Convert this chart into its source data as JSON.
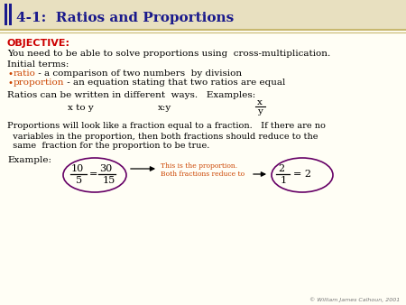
{
  "title": "4-1:  Ratios and Proportions",
  "title_color": "#1a1a8c",
  "title_fontsize": 11,
  "bg_color": "#fffef5",
  "header_bg": "#e8e0c0",
  "objective_label": "OBJECTIVE:",
  "objective_color": "#cc0000",
  "objective_fontsize": 8,
  "body_color": "#000000",
  "body_fontsize": 7.5,
  "small_fontsize": 6.5,
  "highlight_color": "#cc4400",
  "purple_color": "#660066",
  "copyright": "© William James Calhoun, 2001",
  "copyright_fontsize": 4.5
}
